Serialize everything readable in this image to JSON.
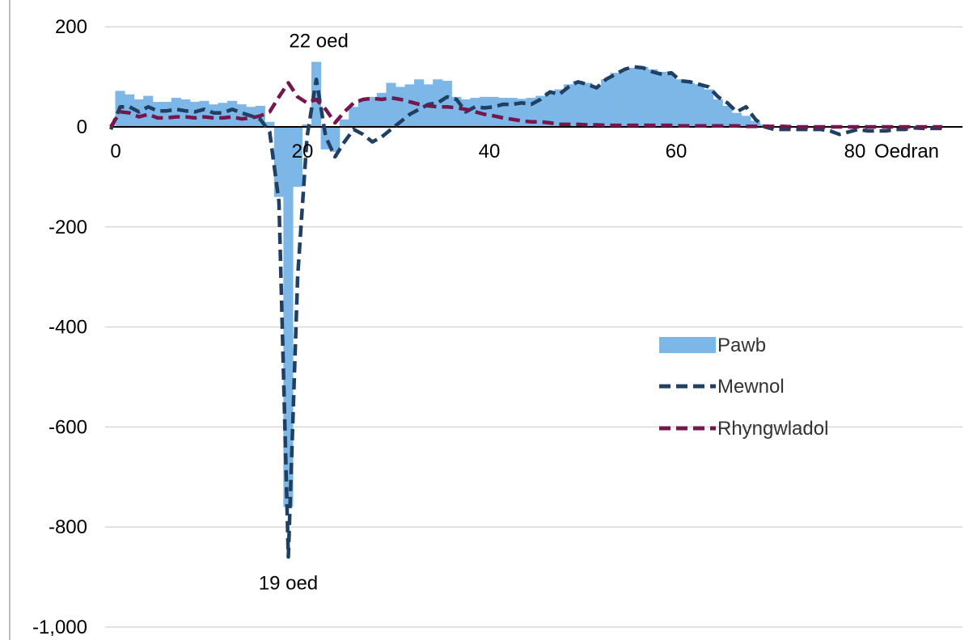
{
  "chart_data": {
    "type": "bar",
    "xlabel": "Oedran",
    "ylabel": "",
    "xlim": [
      0,
      90
    ],
    "ylim": [
      -1000,
      200
    ],
    "x_ticks": [
      "0",
      "20",
      "40",
      "60",
      "80"
    ],
    "y_ticks": [
      "200",
      "0",
      "-200",
      "-400",
      "-600",
      "-800",
      "-1,000"
    ],
    "grid": true,
    "legend_position": "right",
    "annotations": [
      {
        "label": "22 oed",
        "x": 22,
        "y": 130
      },
      {
        "label": "19 oed",
        "x": 19,
        "y": -860
      }
    ],
    "ages": [
      0,
      1,
      2,
      3,
      4,
      5,
      6,
      7,
      8,
      9,
      10,
      11,
      12,
      13,
      14,
      15,
      16,
      17,
      18,
      19,
      20,
      21,
      22,
      23,
      24,
      25,
      26,
      27,
      28,
      29,
      30,
      31,
      32,
      33,
      34,
      35,
      36,
      37,
      38,
      39,
      40,
      41,
      42,
      43,
      44,
      45,
      46,
      47,
      48,
      49,
      50,
      51,
      52,
      53,
      54,
      55,
      56,
      57,
      58,
      59,
      60,
      61,
      62,
      63,
      64,
      65,
      66,
      67,
      68,
      69,
      70,
      71,
      72,
      73,
      74,
      75,
      76,
      77,
      78,
      79,
      80,
      81,
      82,
      83,
      84,
      85,
      86,
      87,
      88,
      89
    ],
    "series": [
      {
        "name": "Pawb",
        "type": "bar",
        "color": "#7cb7e8",
        "values": [
          0,
          72,
          65,
          55,
          62,
          50,
          50,
          58,
          55,
          50,
          52,
          45,
          48,
          52,
          45,
          40,
          42,
          10,
          -140,
          -760,
          -120,
          5,
          130,
          -45,
          -50,
          15,
          40,
          55,
          60,
          68,
          88,
          80,
          85,
          95,
          85,
          95,
          92,
          60,
          55,
          58,
          60,
          60,
          58,
          58,
          56,
          58,
          62,
          70,
          75,
          85,
          92,
          88,
          80,
          95,
          108,
          112,
          118,
          120,
          115,
          110,
          105,
          95,
          88,
          85,
          75,
          55,
          42,
          28,
          22,
          12,
          5,
          0,
          0,
          0,
          0,
          0,
          0,
          0,
          0,
          0,
          0,
          0,
          0,
          0,
          0,
          0,
          0,
          0,
          0,
          0
        ]
      },
      {
        "name": "Mewnol",
        "type": "line",
        "style": "dashed",
        "color": "#1f3f63",
        "values": [
          -5,
          40,
          40,
          30,
          40,
          32,
          32,
          35,
          32,
          30,
          35,
          28,
          28,
          35,
          28,
          22,
          15,
          -10,
          -150,
          -860,
          -300,
          -20,
          95,
          -20,
          -60,
          -30,
          -5,
          -15,
          -30,
          -20,
          -5,
          10,
          25,
          35,
          45,
          48,
          60,
          55,
          30,
          40,
          38,
          40,
          45,
          45,
          48,
          45,
          55,
          70,
          65,
          80,
          90,
          85,
          78,
          95,
          105,
          115,
          120,
          118,
          110,
          105,
          108,
          92,
          90,
          85,
          80,
          60,
          48,
          30,
          40,
          15,
          0,
          -5,
          -5,
          -5,
          -5,
          -5,
          -5,
          -8,
          -15,
          -10,
          -5,
          -8,
          -8,
          -8,
          -5,
          -5,
          -2,
          -3,
          -3,
          -3
        ]
      },
      {
        "name": "Rhyngwladol",
        "type": "line",
        "style": "dashed",
        "color": "#74174d",
        "values": [
          0,
          30,
          28,
          20,
          25,
          18,
          18,
          20,
          20,
          18,
          20,
          18,
          18,
          20,
          16,
          18,
          22,
          30,
          60,
          88,
          60,
          48,
          55,
          35,
          8,
          30,
          48,
          55,
          57,
          55,
          58,
          55,
          50,
          45,
          42,
          40,
          40,
          38,
          35,
          30,
          25,
          22,
          18,
          15,
          12,
          10,
          10,
          8,
          5,
          5,
          5,
          4,
          4,
          3,
          3,
          3,
          3,
          3,
          3,
          3,
          3,
          2,
          2,
          2,
          2,
          2,
          2,
          2,
          1,
          1,
          1,
          1,
          1,
          0,
          0,
          0,
          0,
          0,
          0,
          0,
          0,
          0,
          0,
          0,
          0,
          0,
          0,
          0,
          0,
          0
        ]
      }
    ]
  }
}
